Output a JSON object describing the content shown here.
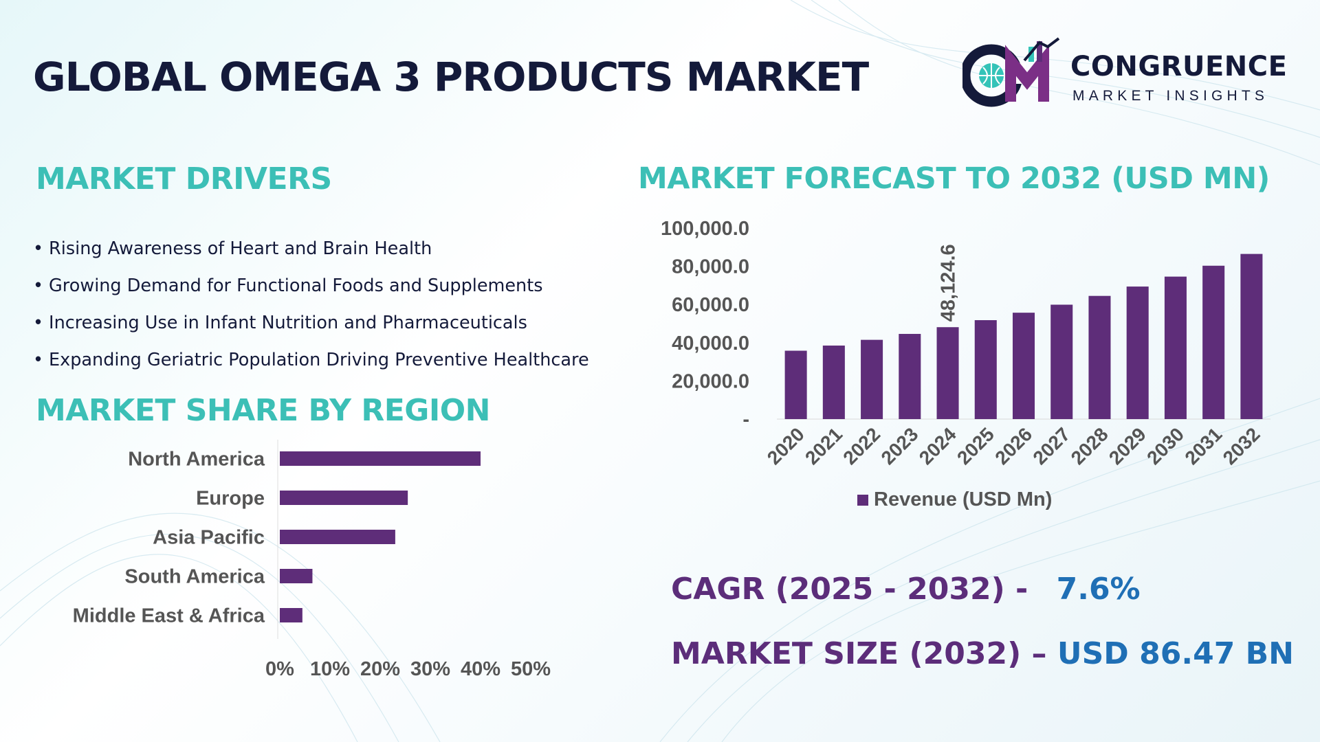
{
  "title": "GLOBAL OMEGA 3 PRODUCTS MARKET",
  "logo": {
    "mark_text": "CM",
    "name": "CONGRUENCE",
    "tagline": "MARKET INSIGHTS"
  },
  "drivers": {
    "heading": "MARKET DRIVERS",
    "bullet": "•",
    "items": [
      "Rising Awareness of Heart and Brain Health",
      "Growing Demand for Functional Foods and Supplements",
      "Increasing Use in Infant Nutrition and Pharmaceuticals",
      "Expanding Geriatric Population Driving Preventive Healthcare"
    ]
  },
  "region_heading": "MARKET SHARE BY REGION",
  "forecast_heading": "MARKET FORECAST TO 2032 (USD MN)",
  "kpis": {
    "cagr_label": "CAGR (2025 - 2032) -",
    "cagr_value": "7.6%",
    "size_label": "MARKET SIZE (2032) –",
    "size_value": "USD 86.47 BN"
  },
  "colors": {
    "bar": "#5e2d79",
    "heading": "#3cbfb6",
    "title": "#141a3a",
    "kpi_label": "#5c2d7a",
    "kpi_value": "#1f6fb5",
    "logo_teal": "#34c3b8",
    "logo_purple": "#7b2f86"
  },
  "chart_data": [
    {
      "type": "bar",
      "orientation": "horizontal",
      "title": "MARKET SHARE BY REGION",
      "categories": [
        "North America",
        "Europe",
        "Asia Pacific",
        "South America",
        "Middle East & Africa"
      ],
      "values": [
        40,
        25.5,
        23,
        6.5,
        4.5
      ],
      "unit": "%",
      "xlim": [
        0,
        50
      ],
      "x_ticks": [
        "0%",
        "10%",
        "20%",
        "30%",
        "40%",
        "50%"
      ],
      "grid": false,
      "legend": "none"
    },
    {
      "type": "bar",
      "title": "MARKET FORECAST TO 2032 (USD MN)",
      "categories": [
        "2020",
        "2021",
        "2022",
        "2023",
        "2024",
        "2025",
        "2026",
        "2027",
        "2028",
        "2029",
        "2030",
        "2031",
        "2032"
      ],
      "series": [
        {
          "name": "Revenue (USD Mn)",
          "values": [
            35800,
            38500,
            41500,
            44600,
            48124.6,
            51800,
            55700,
            59900,
            64500,
            69400,
            74600,
            80300,
            86470
          ]
        }
      ],
      "annotations": [
        {
          "category": "2024",
          "text": "48,124.6"
        }
      ],
      "ylim": [
        0,
        100000
      ],
      "y_ticks": [
        "-",
        "20,000.0",
        "40,000.0",
        "60,000.0",
        "80,000.0",
        "100,000.0"
      ],
      "grid": false,
      "legend": "bottom"
    }
  ]
}
